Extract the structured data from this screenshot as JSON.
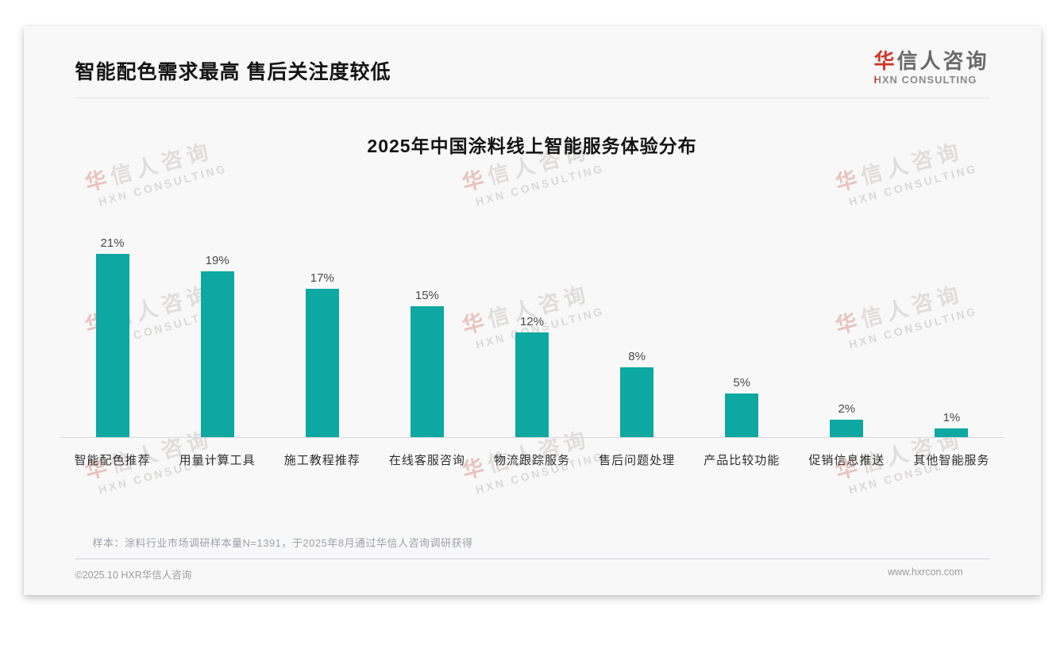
{
  "header": {
    "title": "智能配色需求最高 售后关注度较低",
    "logo": {
      "cn_first": "华",
      "cn_rest": "信人咨询",
      "en_first": "H",
      "en_rest": "XN CONSULTING"
    }
  },
  "chart_data": {
    "type": "bar",
    "title": "2025年中国涂料线上智能服务体验分布",
    "categories": [
      "智能配色推荐",
      "用量计算工具",
      "施工教程推荐",
      "在线客服咨询",
      "物流跟踪服务",
      "售后问题处理",
      "产品比较功能",
      "促销信息推送",
      "其他智能服务"
    ],
    "values": [
      21,
      19,
      17,
      15,
      12,
      8,
      5,
      2,
      1
    ],
    "unit": "%",
    "value_labels": [
      "21%",
      "19%",
      "17%",
      "15%",
      "12%",
      "8%",
      "5%",
      "2%",
      "1%"
    ],
    "xlabel": "",
    "ylabel": "",
    "ylim": [
      0,
      22
    ],
    "grid": false,
    "legend": false,
    "bar_color": "#0ca8a1"
  },
  "watermark": {
    "cn_first": "华",
    "cn_rest": "信人咨询",
    "en": "HXN CONSULTING"
  },
  "footnote": "样本：涂料行业市场调研样本量N=1391，于2025年8月通过华信人咨询调研获得",
  "footer": {
    "left": "©2025.10 HXR华信人咨询",
    "right": "www.hxrcon.com"
  },
  "colors": {
    "bar": "#0ca8a1",
    "accent_red": "#cf382c",
    "card_bg": "#f8f8f8"
  }
}
